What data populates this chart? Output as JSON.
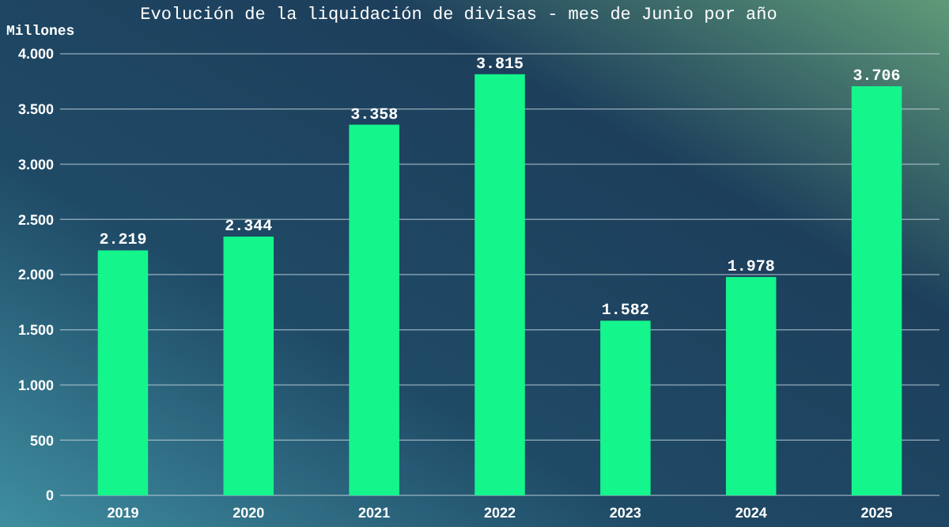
{
  "chart_data": {
    "type": "bar",
    "title": "Evolución de la liquidación de divisas - mes de Junio por año",
    "ylabel": "Millones",
    "categories": [
      "2019",
      "2020",
      "2021",
      "2022",
      "2023",
      "2024",
      "2025"
    ],
    "values": [
      2219,
      2344,
      3358,
      3815,
      1582,
      1978,
      3706
    ],
    "value_labels": [
      "2.219",
      "2.344",
      "3.358",
      "3.815",
      "1.582",
      "1.978",
      "3.706"
    ],
    "color": "#14f58c",
    "ylim": [
      0,
      4000
    ],
    "yticks": [
      {
        "value": 0,
        "label": "0"
      },
      {
        "value": 500,
        "label": "500"
      },
      {
        "value": 1000,
        "label": "1.000"
      },
      {
        "value": 1500,
        "label": "1.500"
      },
      {
        "value": 2000,
        "label": "2.000"
      },
      {
        "value": 2500,
        "label": "2.500"
      },
      {
        "value": 3000,
        "label": "3.000"
      },
      {
        "value": 3500,
        "label": "3.500"
      },
      {
        "value": 4000,
        "label": "4.000"
      }
    ],
    "grid": "y"
  }
}
